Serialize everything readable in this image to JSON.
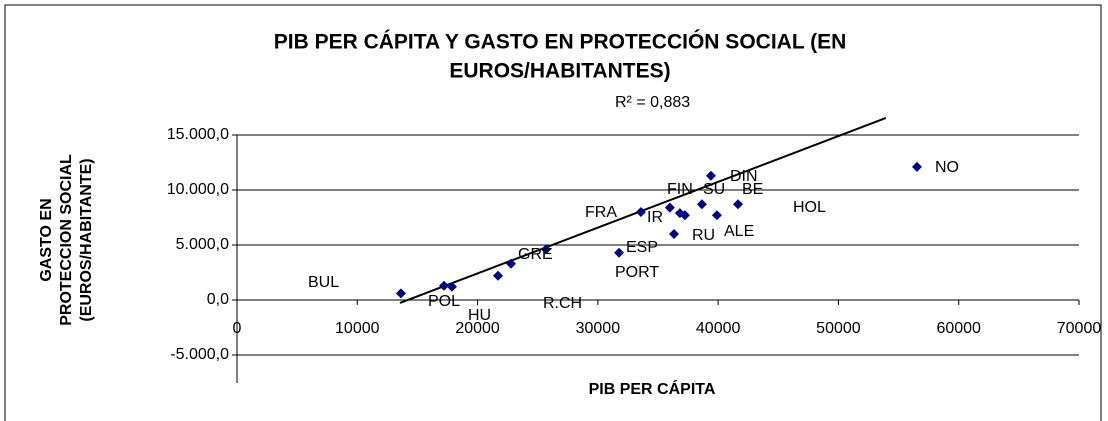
{
  "chart_data": {
    "type": "scatter",
    "title": [
      "PIB PER CÁPITA Y GASTO EN PROTECCIÓN SOCIAL (EN",
      "EUROS/HABITANTES)"
    ],
    "annotation": "R² = 0,883",
    "x_label": "PIB PER CÁPITA",
    "y_label": [
      "GASTO EN",
      "PROTECCION SOCIAL",
      "(EUROS/HABITANTE)"
    ],
    "xlim": [
      0,
      70000
    ],
    "xticks": [
      0,
      10000,
      20000,
      30000,
      40000,
      50000,
      60000,
      70000
    ],
    "ylim": [
      -5000,
      15000
    ],
    "yticks": [
      {
        "value": -5000,
        "label": "-5.000,0"
      },
      {
        "value": 0,
        "label": "0,0"
      },
      {
        "value": 5000,
        "label": "5.000,0"
      },
      {
        "value": 10000,
        "label": "10.000,0"
      },
      {
        "value": 15000,
        "label": "15.000,0"
      }
    ],
    "grid": true,
    "color": "#000080",
    "labels": [
      "BUL",
      "POL",
      "HU",
      "R.CH",
      "GRE",
      "ESP",
      "PORT",
      "FRA",
      "IR",
      "FIN",
      "SU",
      "DIN",
      "BE",
      "RU",
      "ALE",
      "HOL",
      "NO"
    ],
    "x": [
      13630,
      17210,
      17870,
      21700,
      22780,
      25690,
      31760,
      33580,
      35990,
      36820,
      37240,
      39400,
      41650,
      36330,
      39900,
      38650,
      56530
    ],
    "values": [
      600,
      1300,
      1200,
      2200,
      3300,
      4600,
      4300,
      8000,
      8400,
      7900,
      7700,
      11300,
      8700,
      6000,
      7700,
      8700,
      12100
    ],
    "trendline": {
      "color": "#000000",
      "x": [
        13550,
        53950
      ],
      "y": [
        -270,
        16550
      ]
    }
  }
}
